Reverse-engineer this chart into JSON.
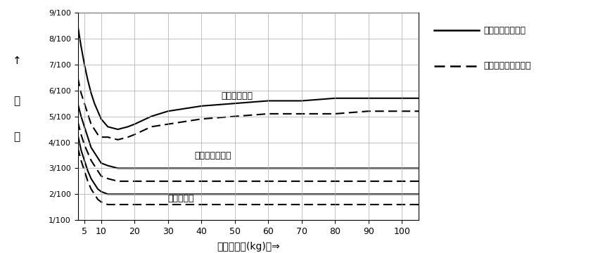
{
  "xlabel": "搬送物重量(kg)　⇒",
  "ylabel_lines": [
    "↑",
    "勾",
    "配"
  ],
  "xlim": [
    3,
    105
  ],
  "ylim": [
    0.01,
    0.09
  ],
  "ytick_vals": [
    0.01,
    0.02,
    0.03,
    0.04,
    0.05,
    0.06,
    0.07,
    0.08,
    0.09
  ],
  "ytick_labels": [
    "1/100",
    "2/100",
    "3/100",
    "4/100",
    "5/100",
    "6/100",
    "7/100",
    "8/100",
    "9/100"
  ],
  "xtick_vals": [
    5,
    10,
    20,
    30,
    40,
    50,
    60,
    70,
    80,
    90,
    100
  ],
  "xtick_labels": [
    "5",
    "10",
    "20",
    "30",
    "40",
    "50",
    "60",
    "70",
    "80",
    "90",
    "100"
  ],
  "legend_solid": "プレスベアリング",
  "legend_dashed": "削り出しベアリング",
  "label_danball": "ダンボール箱",
  "label_plastic": "プラスチック箱",
  "label_steel": "スチール箱",
  "grid_color": "#aaaaaa",
  "x_data": [
    3,
    4,
    5,
    6,
    7,
    8,
    9,
    10,
    12,
    15,
    18,
    20,
    25,
    30,
    40,
    50,
    60,
    70,
    80,
    90,
    100,
    105
  ],
  "y_dan_solid": [
    0.085,
    0.077,
    0.07,
    0.064,
    0.059,
    0.055,
    0.052,
    0.049,
    0.046,
    0.045,
    0.046,
    0.047,
    0.05,
    0.052,
    0.054,
    0.055,
    0.056,
    0.056,
    0.057,
    0.057,
    0.057,
    0.057
  ],
  "y_dan_dashed": [
    0.065,
    0.059,
    0.055,
    0.051,
    0.047,
    0.045,
    0.043,
    0.042,
    0.042,
    0.041,
    0.042,
    0.043,
    0.046,
    0.047,
    0.049,
    0.05,
    0.051,
    0.051,
    0.051,
    0.052,
    0.052,
    0.052
  ],
  "y_pla_solid": [
    0.055,
    0.05,
    0.046,
    0.042,
    0.038,
    0.036,
    0.034,
    0.032,
    0.031,
    0.03,
    0.03,
    0.03,
    0.03,
    0.03,
    0.03,
    0.03,
    0.03,
    0.03,
    0.03,
    0.03,
    0.03,
    0.03
  ],
  "y_pla_dashed": [
    0.048,
    0.043,
    0.039,
    0.036,
    0.033,
    0.031,
    0.029,
    0.027,
    0.026,
    0.025,
    0.025,
    0.025,
    0.025,
    0.025,
    0.025,
    0.025,
    0.025,
    0.025,
    0.025,
    0.025,
    0.025,
    0.025
  ],
  "y_ste_solid": [
    0.043,
    0.037,
    0.033,
    0.029,
    0.026,
    0.024,
    0.022,
    0.021,
    0.02,
    0.02,
    0.02,
    0.02,
    0.02,
    0.02,
    0.02,
    0.02,
    0.02,
    0.02,
    0.02,
    0.02,
    0.02,
    0.02
  ],
  "y_ste_dashed": [
    0.038,
    0.033,
    0.029,
    0.025,
    0.022,
    0.02,
    0.018,
    0.017,
    0.016,
    0.016,
    0.016,
    0.016,
    0.016,
    0.016,
    0.016,
    0.016,
    0.016,
    0.016,
    0.016,
    0.016,
    0.016,
    0.016
  ]
}
